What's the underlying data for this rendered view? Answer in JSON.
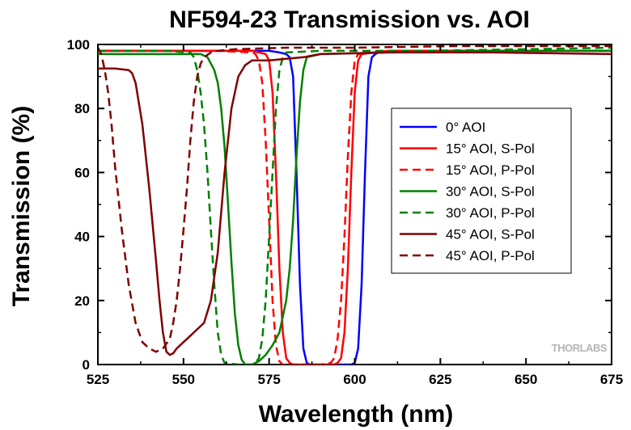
{
  "chart_data": {
    "type": "line",
    "title": "NF594-23 Transmission vs. AOI",
    "xlabel": "Wavelength (nm)",
    "ylabel": "Transmission (%)",
    "xlim": [
      525,
      675
    ],
    "ylim": [
      0,
      100
    ],
    "xticks": [
      525,
      550,
      575,
      600,
      625,
      650,
      675
    ],
    "yticks": [
      0,
      20,
      40,
      60,
      80,
      100
    ],
    "grid": false,
    "legend_position": "center-right",
    "watermark": "THORLABS",
    "series": [
      {
        "name": "0° AOI",
        "color": "#0000ff",
        "dash": "solid",
        "x": [
          525,
          540,
          560,
          575,
          578,
          580,
          581,
          582,
          583,
          584,
          585,
          586,
          587,
          595,
          599,
          600,
          601,
          602,
          603,
          604,
          605,
          606,
          607,
          620,
          640,
          660,
          675
        ],
        "y": [
          98,
          98,
          98,
          98,
          97.5,
          97,
          96,
          90,
          60,
          25,
          5,
          0.5,
          0,
          0,
          0,
          0.5,
          5,
          25,
          60,
          90,
          96,
          97,
          97.5,
          98,
          98,
          98,
          98
        ]
      },
      {
        "name": "15° AOI, S-Pol",
        "color": "#ff0000",
        "dash": "solid",
        "x": [
          525,
          540,
          560,
          570,
          572,
          574,
          575,
          576,
          577,
          578,
          579,
          580,
          581,
          582,
          590,
          594,
          595,
          596,
          597,
          598,
          599,
          600,
          601,
          602,
          610,
          630,
          650,
          675
        ],
        "y": [
          98,
          98,
          98,
          98,
          97.5,
          97,
          95,
          85,
          60,
          30,
          10,
          2,
          0.5,
          0,
          0,
          0,
          0.5,
          2,
          10,
          30,
          60,
          85,
          95,
          97,
          98,
          98,
          98,
          98
        ]
      },
      {
        "name": "15° AOI, P-Pol",
        "color": "#ff0000",
        "dash": "dash",
        "x": [
          525,
          540,
          560,
          570,
          571,
          572,
          573,
          574,
          575,
          576,
          577,
          578,
          579,
          580,
          590,
          593,
          594,
          595,
          596,
          597,
          598,
          599,
          600,
          601,
          610,
          630,
          650,
          675
        ],
        "y": [
          98,
          98,
          98,
          97.5,
          97,
          95,
          88,
          70,
          45,
          20,
          6,
          1,
          0,
          0,
          0,
          0.5,
          2,
          8,
          20,
          40,
          65,
          85,
          95,
          97,
          98,
          98,
          98,
          98
        ]
      },
      {
        "name": "30° AOI, S-Pol",
        "color": "#008000",
        "dash": "solid",
        "x": [
          525,
          535,
          545,
          555,
          557,
          559,
          560,
          561,
          562,
          563,
          564,
          565,
          566,
          567,
          568,
          570,
          572,
          574,
          576,
          578,
          580,
          581,
          582,
          583,
          584,
          585,
          586,
          590,
          610,
          640,
          675
        ],
        "y": [
          97,
          97,
          97,
          97,
          96,
          92,
          88,
          80,
          68,
          50,
          32,
          16,
          6,
          1.5,
          0,
          0,
          1,
          3,
          6,
          10,
          20,
          30,
          45,
          65,
          82,
          92,
          96,
          97,
          97.5,
          98,
          98
        ]
      },
      {
        "name": "30° AOI, P-Pol",
        "color": "#008000",
        "dash": "dash",
        "x": [
          525,
          535,
          545,
          552,
          553,
          554,
          555,
          556,
          557,
          558,
          559,
          560,
          561,
          562,
          566,
          570,
          571,
          572,
          573,
          574,
          575,
          576,
          577,
          578,
          579,
          580,
          590,
          620,
          650,
          675
        ],
        "y": [
          98,
          98,
          98,
          97.5,
          96,
          92,
          85,
          75,
          60,
          42,
          25,
          10,
          3,
          0.5,
          0,
          0,
          0.5,
          2,
          8,
          20,
          40,
          60,
          80,
          92,
          96,
          97.5,
          98,
          98,
          98.5,
          99
        ]
      },
      {
        "name": "45° AOI, S-Pol",
        "color": "#800000",
        "dash": "solid",
        "x": [
          525,
          530,
          534,
          535,
          536,
          538,
          540,
          542,
          543,
          544,
          545,
          546,
          547,
          548,
          550,
          552,
          554,
          556,
          558,
          560,
          562,
          564,
          566,
          568,
          570,
          575,
          580,
          585,
          590,
          610,
          640,
          675
        ],
        "y": [
          92.5,
          92.5,
          92,
          91,
          88,
          75,
          55,
          32,
          20,
          10,
          4,
          3,
          3.5,
          5,
          7,
          9,
          11,
          13,
          20,
          35,
          60,
          80,
          90,
          93.5,
          95,
          95,
          95.5,
          96,
          97,
          97.5,
          97.5,
          97
        ]
      },
      {
        "name": "45° AOI, P-Pol",
        "color": "#800000",
        "dash": "dash",
        "x": [
          525,
          526,
          527,
          528,
          529,
          530,
          532,
          534,
          536,
          538,
          540,
          542,
          544,
          546,
          547,
          548,
          549,
          550,
          551,
          552,
          553,
          554,
          555,
          556,
          558,
          560,
          565,
          580,
          600,
          630,
          660,
          675
        ],
        "y": [
          99,
          97,
          92,
          85,
          75,
          62,
          42,
          25,
          13,
          7,
          5,
          4,
          5,
          8,
          13,
          20,
          30,
          42,
          55,
          70,
          82,
          90,
          94,
          96,
          97.5,
          98,
          98.5,
          99,
          99,
          99.5,
          99.5,
          99.5
        ]
      }
    ]
  }
}
